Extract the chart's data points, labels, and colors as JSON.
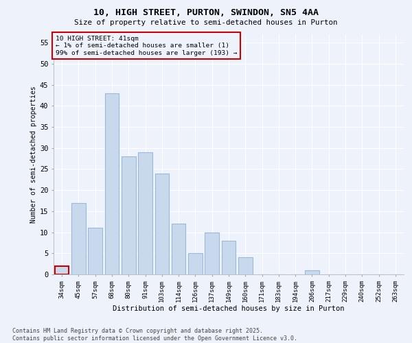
{
  "title1": "10, HIGH STREET, PURTON, SWINDON, SN5 4AA",
  "title2": "Size of property relative to semi-detached houses in Purton",
  "xlabel": "Distribution of semi-detached houses by size in Purton",
  "ylabel": "Number of semi-detached properties",
  "categories": [
    "34sqm",
    "45sqm",
    "57sqm",
    "68sqm",
    "80sqm",
    "91sqm",
    "103sqm",
    "114sqm",
    "126sqm",
    "137sqm",
    "149sqm",
    "160sqm",
    "171sqm",
    "183sqm",
    "194sqm",
    "206sqm",
    "217sqm",
    "229sqm",
    "240sqm",
    "252sqm",
    "263sqm"
  ],
  "values": [
    2,
    17,
    11,
    43,
    28,
    29,
    24,
    12,
    5,
    10,
    8,
    4,
    0,
    0,
    0,
    1,
    0,
    0,
    0,
    0,
    0
  ],
  "highlight_index": 0,
  "bar_color": "#c8d9ee",
  "bar_edge_color": "#9ab8d8",
  "highlight_bar_edge_color": "#cc0000",
  "annotation_title": "10 HIGH STREET: 41sqm",
  "annotation_line1": "← 1% of semi-detached houses are smaller (1)",
  "annotation_line2": "99% of semi-detached houses are larger (193) →",
  "annotation_box_edge_color": "#cc0000",
  "ylim": [
    0,
    57
  ],
  "yticks": [
    0,
    5,
    10,
    15,
    20,
    25,
    30,
    35,
    40,
    45,
    50,
    55
  ],
  "background_color": "#eef2fa",
  "grid_color": "#ffffff",
  "footer1": "Contains HM Land Registry data © Crown copyright and database right 2025.",
  "footer2": "Contains public sector information licensed under the Open Government Licence v3.0."
}
